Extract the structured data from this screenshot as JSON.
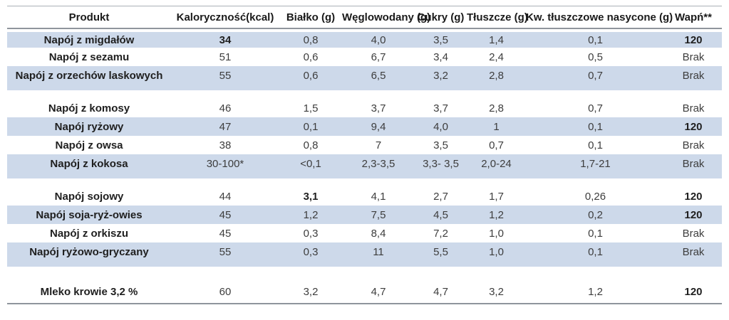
{
  "colors": {
    "row_shade": "#cdd9ea",
    "rule_dark": "#8f959c",
    "rule_light": "#aab0b7",
    "text": "#3d3d3d",
    "text_bold": "#1f1f1f"
  },
  "table": {
    "columns": [
      "Produkt",
      "Kaloryczność(kcal)",
      "Białko (g)",
      "Węglowodany (g)",
      "Cukry (g)",
      "Tłuszcze (g)",
      "Kw. tłuszczowe nasycone (g)",
      "Wapń**"
    ],
    "rows": [
      {
        "product": "Napój z migdałów",
        "values": [
          "34",
          "0,8",
          "4,0",
          "3,5",
          "1,4",
          "0,1",
          "120"
        ],
        "shaded": true,
        "bold_values": [
          0,
          6
        ]
      },
      {
        "product": "Napój z sezamu",
        "values": [
          "51",
          "0,6",
          "6,7",
          "3,4",
          "2,4",
          "0,5",
          "Brak"
        ],
        "shaded": false,
        "bold_values": []
      },
      {
        "product": "Napój z orzechów laskowych",
        "values": [
          "55",
          "0,6",
          "6,5",
          "3,2",
          "2,8",
          "0,7",
          "Brak"
        ],
        "shaded": true,
        "tall": true,
        "spacer_after": 12,
        "bold_values": []
      },
      {
        "product": "Napój z komosy",
        "values": [
          "46",
          "1,5",
          "3,7",
          "3,7",
          "2,8",
          "0,7",
          "Brak"
        ],
        "shaded": false,
        "bold_values": []
      },
      {
        "product": "Napój ryżowy",
        "values": [
          "47",
          "0,1",
          "9,4",
          "4,0",
          "1",
          "0,1",
          "120"
        ],
        "shaded": true,
        "bold_values": [
          6
        ]
      },
      {
        "product": "Napój z owsa",
        "values": [
          "38",
          "0,8",
          "7",
          "3,5",
          "0,7",
          "0,1",
          "Brak"
        ],
        "shaded": false,
        "bold_values": []
      },
      {
        "product": "Napój z kokosa",
        "values": [
          "30-100*",
          "<0,1",
          "2,3-3,5",
          "3,3- 3,5",
          "2,0-24",
          "1,7-21",
          "Brak"
        ],
        "shaded": true,
        "tall": true,
        "spacer_after": 12,
        "bold_values": []
      },
      {
        "product": "Napój sojowy",
        "values": [
          "44",
          "3,1",
          "4,1",
          "2,7",
          "1,7",
          "0,26",
          "120"
        ],
        "shaded": false,
        "bold_values": [
          1,
          6
        ]
      },
      {
        "product": "Napój soja-ryż-owies",
        "values": [
          "45",
          "1,2",
          "7,5",
          "4,5",
          "1,2",
          "0,2",
          "120"
        ],
        "shaded": true,
        "bold_values": [
          6
        ]
      },
      {
        "product": "Napój z orkiszu",
        "values": [
          "45",
          "0,3",
          "8,4",
          "7,2",
          "1,0",
          "0,1",
          "Brak"
        ],
        "shaded": false,
        "bold_values": []
      },
      {
        "product": "Napój ryżowo-gryczany",
        "values": [
          "55",
          "0,3",
          "11",
          "5,5",
          "1,0",
          "0,1",
          "Brak"
        ],
        "shaded": true,
        "tall": true,
        "spacer_after": 19,
        "bold_values": []
      },
      {
        "product": "Mleko krowie 3,2 %",
        "values": [
          "60",
          "3,2",
          "4,7",
          "4,7",
          "3,2",
          "1,2",
          "120"
        ],
        "shaded": false,
        "last": true,
        "bold_values": [
          6
        ]
      }
    ]
  }
}
